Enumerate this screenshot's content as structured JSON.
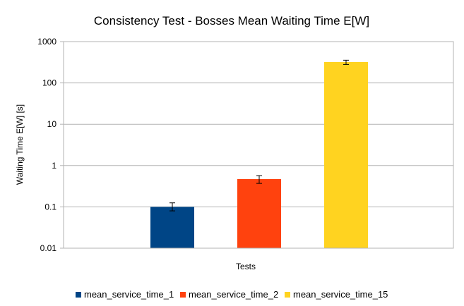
{
  "chart_data": {
    "type": "bar",
    "title": "Consistency Test - Bosses Mean Waiting Time E[W]",
    "xlabel": "Tests",
    "ylabel": "Waiting Time E[W] [s]",
    "yscale": "log",
    "ylim": [
      0.01,
      1000
    ],
    "yticks": [
      "0.01",
      "0.1",
      "1",
      "10",
      "100",
      "1000"
    ],
    "grid": true,
    "legend_position": "bottom",
    "series": [
      {
        "name": "mean_service_time_1",
        "color": "#004586",
        "value": 0.1,
        "error": [
          0.08,
          0.125
        ]
      },
      {
        "name": "mean_service_time_2",
        "color": "#ff420e",
        "value": 0.47,
        "error": [
          0.37,
          0.57
        ]
      },
      {
        "name": "mean_service_time_15",
        "color": "#ffd320",
        "value": 320,
        "error": [
          280,
          355
        ]
      }
    ]
  }
}
